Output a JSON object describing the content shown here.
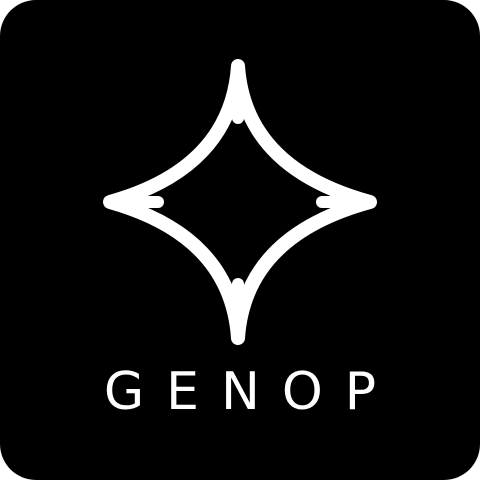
{
  "logo": {
    "icon": "four-point-sparkle-icon",
    "wordmark": "GENOP"
  },
  "colors": {
    "background": "#000000",
    "foreground": "#ffffff"
  }
}
